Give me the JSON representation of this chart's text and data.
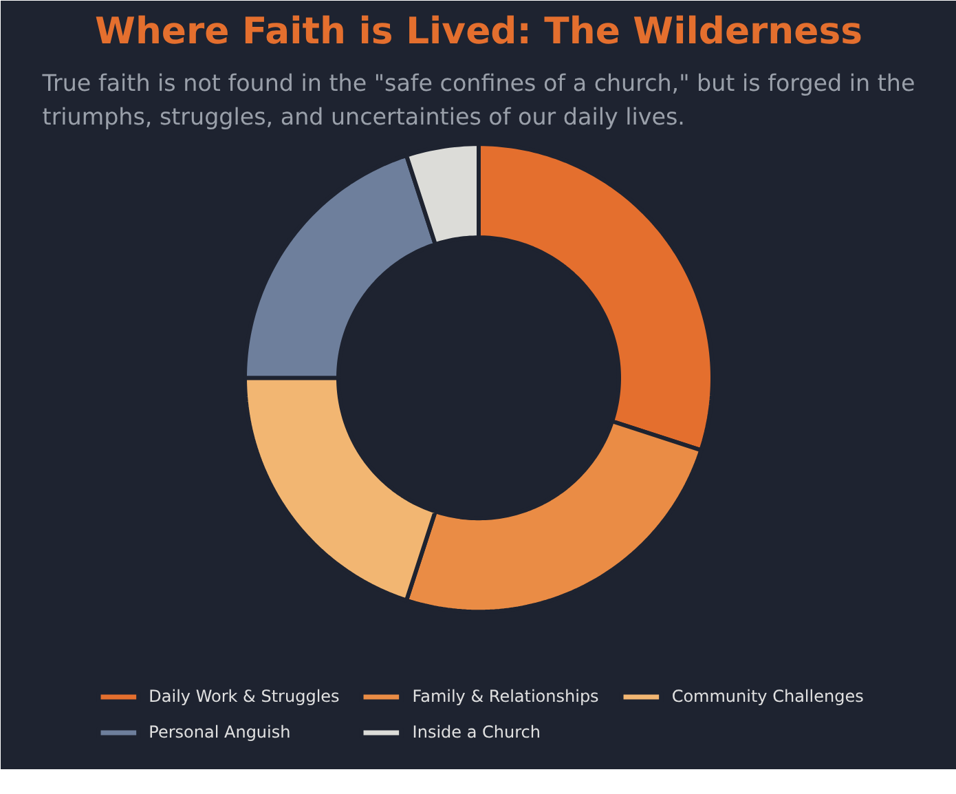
{
  "chart_data": {
    "type": "donut",
    "title": "Where Faith is Lived: The Wilderness",
    "subtitle": "True faith is not found in the \"safe confines of a church,\" but is forged in the triumphs, struggles, and uncertainties of our daily lives.",
    "categories": [
      "Daily Work & Struggles",
      "Family & Relationships",
      "Community Challenges",
      "Personal Anguish",
      "Inside a Church"
    ],
    "values": [
      30,
      25,
      20,
      20,
      5
    ],
    "colors": [
      "#e46f2e",
      "#ea8c45",
      "#f2b672",
      "#6e7f9c",
      "#dcdcd8"
    ],
    "legend": "bottom"
  }
}
